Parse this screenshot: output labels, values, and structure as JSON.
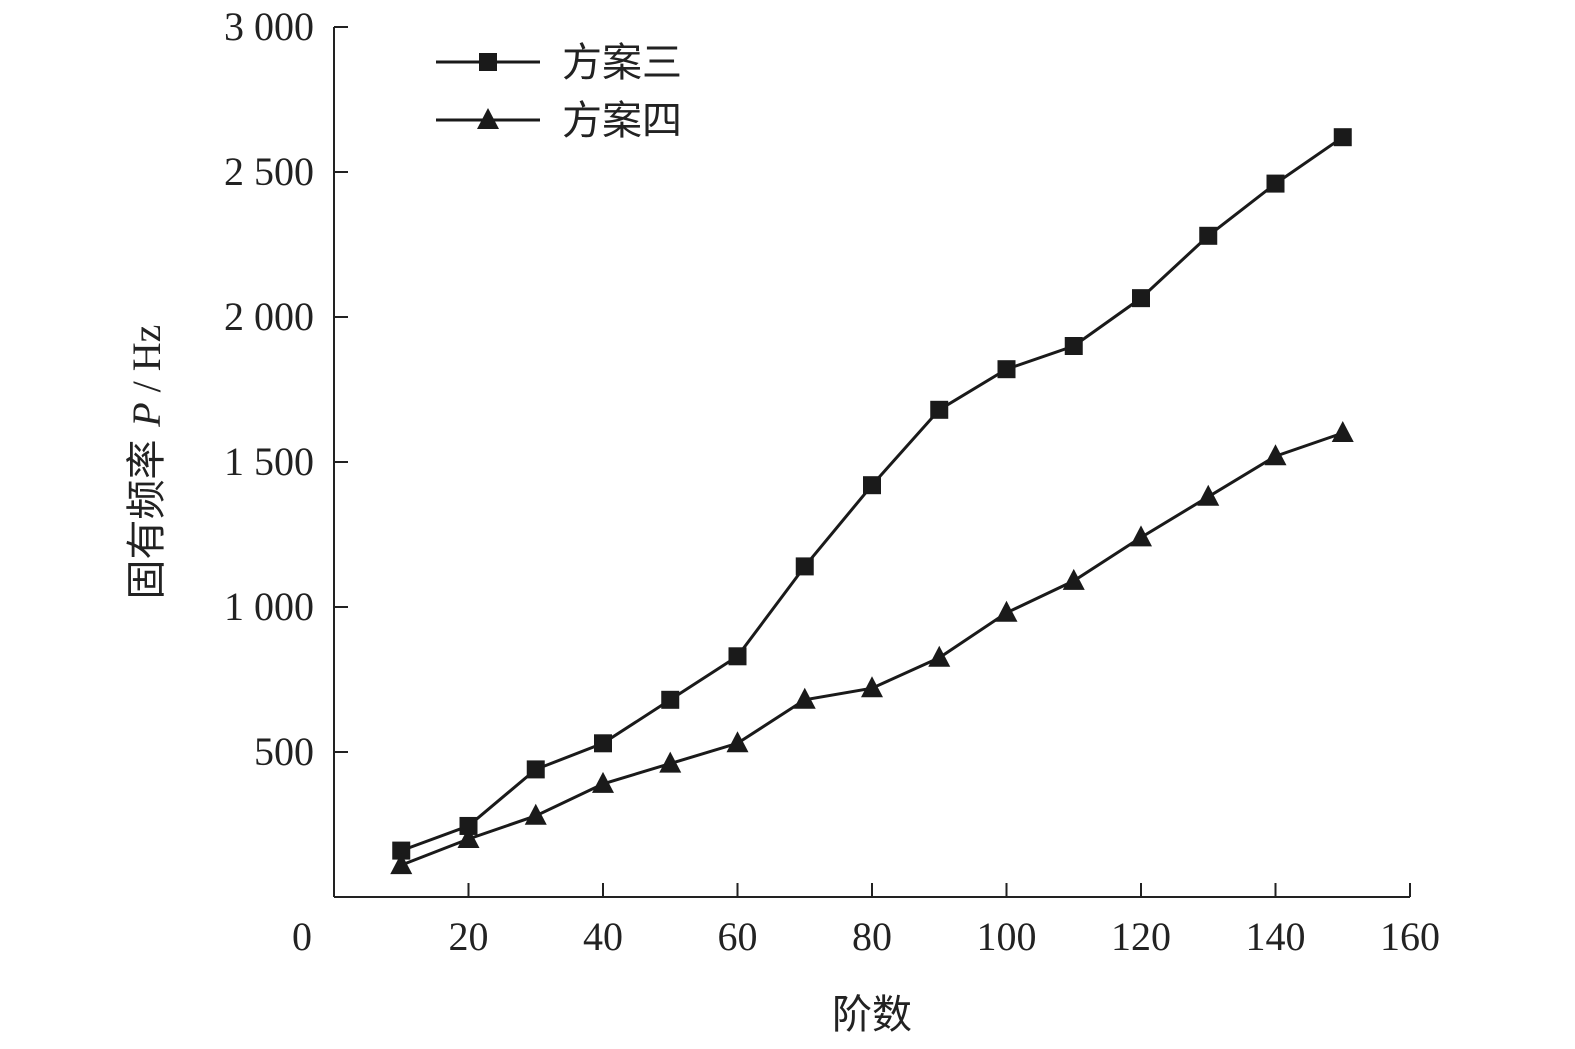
{
  "chart_data": {
    "type": "line",
    "xlabel": "阶数",
    "ylabel": {
      "prefix": "固有频率 ",
      "variable": "P",
      "unit": " / Hz"
    },
    "xlim": [
      0,
      160
    ],
    "ylim": [
      0,
      3000
    ],
    "x_ticks": [
      0,
      20,
      40,
      60,
      80,
      100,
      120,
      140,
      160
    ],
    "x_tick_labels": [
      "0",
      "20",
      "40",
      "60",
      "80",
      "100",
      "120",
      "140",
      "160"
    ],
    "y_ticks": [
      500,
      1000,
      1500,
      2000,
      2500,
      3000
    ],
    "y_tick_labels": [
      "500",
      "1 000",
      "1 500",
      "2 000",
      "2 500",
      "3 000"
    ],
    "grid": false,
    "legend_position": "top-left",
    "x": [
      10,
      20,
      30,
      40,
      50,
      60,
      70,
      80,
      90,
      100,
      110,
      120,
      130,
      140,
      150
    ],
    "series": [
      {
        "name": "方案三",
        "marker": "square",
        "color": "#1a1a1a",
        "values": [
          160,
          245,
          440,
          530,
          680,
          830,
          1140,
          1420,
          1680,
          1820,
          1900,
          2065,
          2280,
          2460,
          2620
        ]
      },
      {
        "name": "方案四",
        "marker": "triangle",
        "color": "#1a1a1a",
        "values": [
          110,
          200,
          280,
          390,
          460,
          530,
          680,
          720,
          825,
          980,
          1090,
          1240,
          1380,
          1520,
          1600
        ]
      }
    ]
  }
}
